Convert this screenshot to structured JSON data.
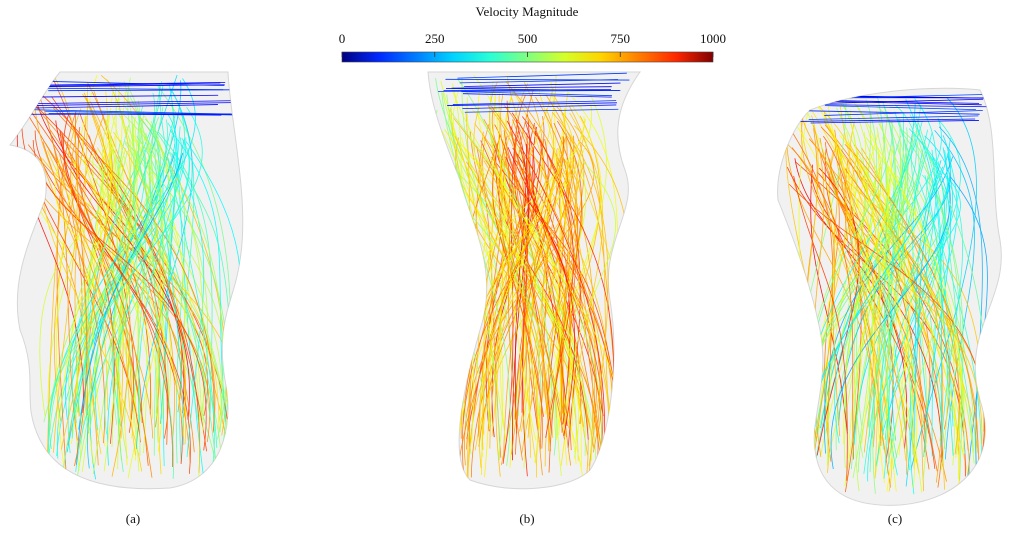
{
  "colorbar": {
    "title": "Velocity Magnitude",
    "lim": [
      0,
      1000
    ],
    "ticks": [
      0,
      250,
      500,
      750,
      1000
    ]
  },
  "panels": [
    {
      "label": "(a)"
    },
    {
      "label": "(b)"
    },
    {
      "label": "(c)"
    }
  ]
}
